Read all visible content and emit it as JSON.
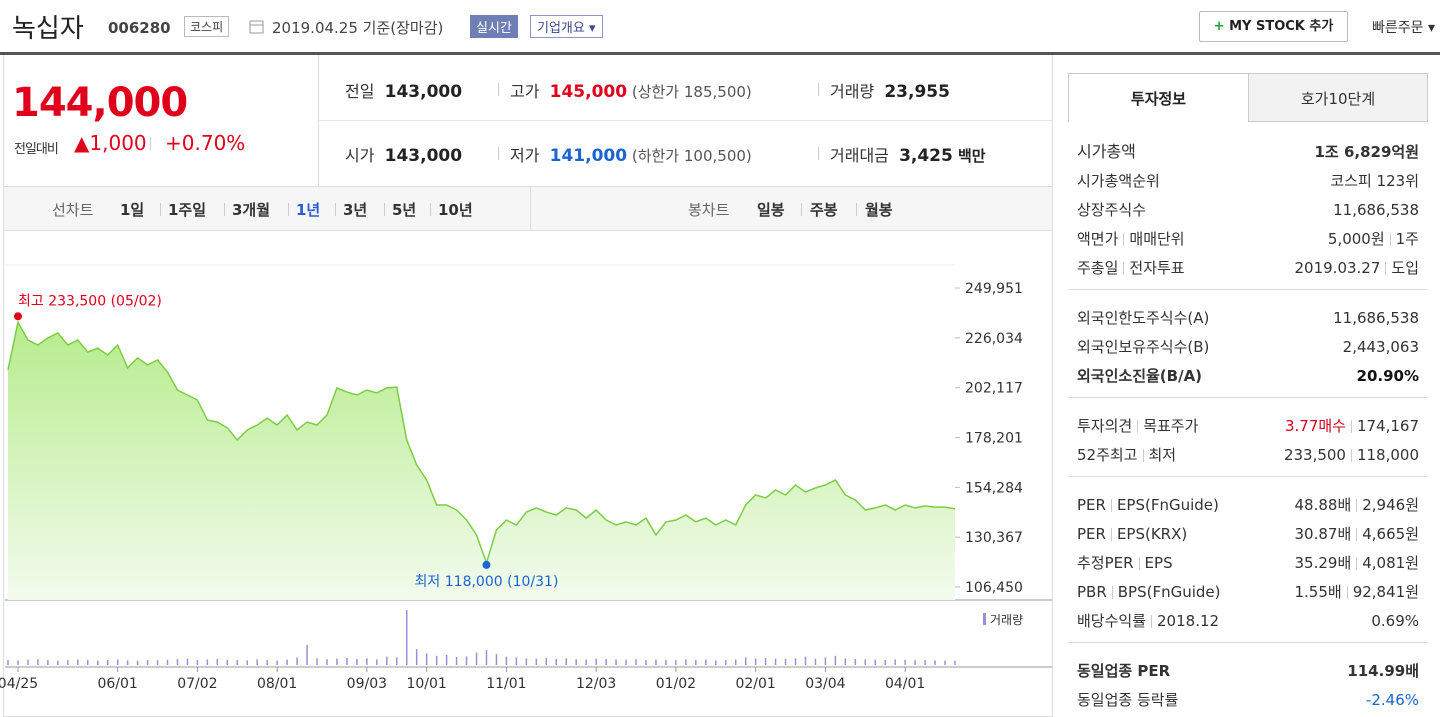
{
  "header": {
    "name": "녹십자",
    "code": "006280",
    "market": "코스피",
    "date": "2019.04.25",
    "basis": "기준(장마감)",
    "realtime": "실시간",
    "company": "기업개요",
    "mystock": "MY STOCK 추가",
    "quick": "빠른주문"
  },
  "price": {
    "current": "144,000",
    "change_label": "전일대비",
    "change": "1,000",
    "change_pct": "+0.70%"
  },
  "summary": {
    "rows": [
      [
        {
          "label": "전일",
          "value": "143,000"
        },
        {
          "label": "고가",
          "value": "145,000",
          "limit_label": "상한가",
          "limit": "185,500"
        },
        {
          "label": "거래량",
          "value": "23,955"
        }
      ],
      [
        {
          "label": "시가",
          "value": "143,000"
        },
        {
          "label": "저가",
          "value": "141,000",
          "limit_label": "하한가",
          "limit": "100,500"
        },
        {
          "label": "거래대금",
          "value": "3,425",
          "unit": "백만"
        }
      ]
    ]
  },
  "tabs": {
    "line_chart": "선차트",
    "periods": [
      "1일",
      "1주일",
      "3개월",
      "1년",
      "3년",
      "5년",
      "10년"
    ],
    "active_period": 3,
    "candle_chart": "봉차트",
    "candle_periods": [
      "일봉",
      "주봉",
      "월봉"
    ]
  },
  "chart": {
    "type": "line",
    "color": "#7ccd43",
    "volume_color": "#9b8fd8",
    "volume_label": "거래량",
    "ylim": [
      100200,
      261000
    ],
    "yticks": [
      {
        "value": 249951,
        "label": "249,951"
      },
      {
        "value": 226034,
        "label": "226,034"
      },
      {
        "value": 202117,
        "label": "202,117"
      },
      {
        "value": 178201,
        "label": "178,201"
      },
      {
        "value": 154284,
        "label": "154,284"
      },
      {
        "value": 130367,
        "label": "130,367"
      },
      {
        "value": 106450,
        "label": "106,450"
      }
    ],
    "high": {
      "label": "최고",
      "value": "233,500",
      "date": "05/02"
    },
    "low": {
      "label": "최저",
      "value": "118,000",
      "date": "10/31"
    },
    "categories": [
      null,
      "04/25",
      null,
      null,
      null,
      null,
      null,
      null,
      null,
      null,
      null,
      "06/01",
      null,
      null,
      null,
      null,
      null,
      null,
      null,
      "07/02",
      null,
      null,
      null,
      null,
      null,
      null,
      null,
      "08/01",
      null,
      null,
      null,
      null,
      null,
      null,
      null,
      null,
      "09/03",
      null,
      null,
      null,
      null,
      null,
      "10/01",
      null,
      null,
      null,
      null,
      null,
      null,
      null,
      "11/01",
      null,
      null,
      null,
      null,
      null,
      null,
      null,
      null,
      "12/03",
      null,
      null,
      null,
      null,
      null,
      null,
      null,
      "01/02",
      null,
      null,
      null,
      null,
      null,
      null,
      null,
      "02/01",
      null,
      null,
      null,
      null,
      null,
      null,
      "03/04",
      null,
      null,
      null,
      null,
      null,
      null,
      null,
      "04/01",
      null,
      null,
      null,
      null,
      null
    ],
    "values": [
      210600,
      233500,
      225000,
      222600,
      226000,
      228400,
      222600,
      225000,
      219200,
      221100,
      217800,
      222600,
      211600,
      216400,
      213000,
      215400,
      209600,
      201000,
      198600,
      196200,
      186600,
      185600,
      182800,
      177000,
      181800,
      184200,
      187500,
      184200,
      189000,
      181800,
      185600,
      184200,
      189000,
      202000,
      200000,
      198600,
      201000,
      199600,
      202000,
      202400,
      177000,
      165000,
      157800,
      145800,
      145800,
      143400,
      138600,
      131400,
      118000,
      133800,
      138600,
      136200,
      142400,
      144400,
      142400,
      141000,
      144400,
      143400,
      139500,
      143400,
      138600,
      136200,
      137700,
      136200,
      139500,
      131400,
      137700,
      138600,
      141000,
      137700,
      139500,
      136200,
      138600,
      136200,
      145800,
      150600,
      149200,
      153000,
      150600,
      155400,
      152000,
      154000,
      155400,
      157800,
      150600,
      148200,
      143400,
      144400,
      145800,
      143400,
      145800,
      144400,
      145300,
      144800,
      144800,
      144000
    ],
    "volume": [
      30000,
      28000,
      32000,
      35000,
      30000,
      26000,
      29000,
      33000,
      31000,
      27000,
      30000,
      34000,
      28000,
      26000,
      30000,
      29000,
      32000,
      35000,
      38000,
      30000,
      33000,
      36000,
      31000,
      29000,
      28000,
      34000,
      30000,
      27000,
      32000,
      45000,
      120000,
      40000,
      35000,
      38000,
      42000,
      36000,
      40000,
      34000,
      50000,
      45000,
      330000,
      95000,
      70000,
      55000,
      60000,
      48000,
      52000,
      75000,
      90000,
      65000,
      50000,
      45000,
      40000,
      38000,
      42000,
      36000,
      40000,
      35000,
      33000,
      38000,
      36000,
      34000,
      32000,
      35000,
      30000,
      33000,
      31000,
      29000,
      34000,
      30000,
      32000,
      28000,
      30000,
      33000,
      45000,
      40000,
      42000,
      38000,
      36000,
      40000,
      50000,
      38000,
      45000,
      55000,
      40000,
      36000,
      34000,
      32000,
      30000,
      33000,
      31000,
      29000,
      30000,
      28000,
      27000,
      26000
    ]
  },
  "info": {
    "tabs": [
      "투자정보",
      "호가10단계"
    ],
    "sections": [
      [
        {
          "labels": [
            "시가총액"
          ],
          "values": [
            "1조 6,829억원"
          ]
        },
        {
          "labels": [
            "시가총액순위"
          ],
          "values": [
            "코스피 123위"
          ]
        },
        {
          "labels": [
            "상장주식수"
          ],
          "values": [
            "11,686,538"
          ]
        },
        {
          "labels": [
            "액면가",
            "매매단위"
          ],
          "values": [
            "5,000원",
            "1주"
          ]
        },
        {
          "labels": [
            "주총일",
            "전자투표"
          ],
          "values": [
            "2019.03.27",
            "도입"
          ]
        }
      ],
      [
        {
          "labels": [
            "외국인한도주식수(A)"
          ],
          "values": [
            "11,686,538"
          ]
        },
        {
          "labels": [
            "외국인보유주식수(B)"
          ],
          "values": [
            "2,443,063"
          ]
        },
        {
          "labels": [
            "외국인소진율(B/A)"
          ],
          "values": [
            "20.90%"
          ]
        }
      ],
      [
        {
          "labels": [
            "투자의견",
            "목표주가"
          ],
          "values": [
            "3.77매수",
            "174,167"
          ]
        },
        {
          "labels": [
            "52주최고",
            "최저"
          ],
          "values": [
            "233,500",
            "118,000"
          ]
        }
      ],
      [
        {
          "labels": [
            "PER",
            "EPS(FnGuide)"
          ],
          "values": [
            "48.88배",
            "2,946원"
          ]
        },
        {
          "labels": [
            "PER",
            "EPS(KRX)"
          ],
          "values": [
            "30.87배",
            "4,665원"
          ]
        },
        {
          "labels": [
            "추정PER",
            "EPS"
          ],
          "values": [
            "35.29배",
            "4,081원"
          ]
        },
        {
          "labels": [
            "PBR",
            "BPS(FnGuide)"
          ],
          "values": [
            "1.55배",
            "92,841원"
          ]
        },
        {
          "labels": [
            "배당수익률",
            "2018.12"
          ],
          "values": [
            "0.69%"
          ]
        }
      ],
      [
        {
          "labels": [
            "동일업종 PER"
          ],
          "values": [
            "114.99배"
          ]
        },
        {
          "labels": [
            "동일업종 등락률"
          ],
          "values": [
            "-2.46%"
          ]
        }
      ]
    ]
  }
}
